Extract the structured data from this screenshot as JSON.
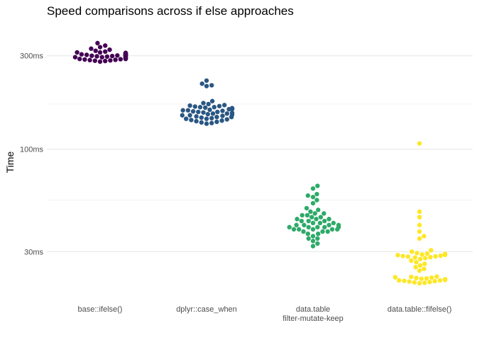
{
  "chart_data": {
    "type": "scatter",
    "subtype": "beeswarm",
    "title": "Speed comparisons across if else approaches",
    "xlabel": "",
    "ylabel": "Time",
    "y_scale": "log10",
    "y_unit": "ms",
    "ylim": [
      17.5,
      450
    ],
    "y_ticks": [
      {
        "value": 30,
        "label": "30ms"
      },
      {
        "value": 100,
        "label": "100ms"
      },
      {
        "value": 300,
        "label": "300ms"
      }
    ],
    "y_minor_ticks": [
      55,
      170
    ],
    "grid": true,
    "legend": "none",
    "categories": [
      {
        "lines": [
          "base::ifelse()"
        ]
      },
      {
        "lines": [
          "dplyr::case_when"
        ]
      },
      {
        "lines": [
          "data.table",
          "filter-mutate-keep"
        ]
      },
      {
        "lines": [
          "data.table::fifelse()"
        ]
      }
    ],
    "series": [
      {
        "color": "#440154",
        "values": [
          348,
          338,
          332,
          326,
          322,
          318,
          315,
          312,
          310,
          309,
          308,
          307,
          306,
          305,
          305,
          304,
          303,
          302,
          302,
          301,
          300,
          300,
          299,
          298,
          298,
          297,
          296,
          295,
          295,
          294,
          293,
          292,
          291,
          290,
          290,
          289,
          289,
          288,
          287,
          286,
          285,
          284,
          283,
          282,
          280,
          310,
          312,
          306,
          304,
          300
        ]
      },
      {
        "color": "#2a5783",
        "values": [
          224,
          216,
          212,
          210,
          176,
          172,
          170,
          168,
          167,
          166,
          165,
          164,
          163,
          162,
          161,
          160,
          159,
          158,
          157,
          156,
          155,
          154,
          153,
          152,
          151,
          150,
          149,
          148,
          147,
          146,
          145,
          144,
          143,
          142,
          141,
          140,
          139,
          138,
          137,
          136,
          135,
          160,
          158,
          155,
          152,
          162,
          149,
          146,
          143,
          164
        ]
      },
      {
        "color": "#2eaa68",
        "values": [
          65,
          63,
          59,
          58,
          57,
          55,
          53,
          50,
          49,
          48,
          47,
          46,
          45,
          44,
          44,
          43,
          43,
          42,
          42,
          41,
          41,
          40,
          40,
          40,
          39,
          39,
          39,
          38,
          38,
          37,
          37,
          36,
          35,
          35,
          34,
          33,
          32,
          40,
          41,
          42,
          43,
          39,
          38,
          44,
          45,
          46,
          47,
          40,
          41,
          39
        ]
      },
      {
        "color": "#fde725",
        "values": [
          107,
          48,
          45,
          41,
          38,
          36,
          35,
          30.5,
          30,
          29.5,
          29.2,
          29,
          28.8,
          28.6,
          28.5,
          28.3,
          28.1,
          28,
          27.8,
          27.5,
          27,
          26.5,
          26,
          25.5,
          25,
          24.5,
          24,
          22.4,
          22.2,
          22,
          21.9,
          21.8,
          21.7,
          21.6,
          21.5,
          21.4,
          21.3,
          21.2,
          21.1,
          21,
          20.9,
          20.8,
          20.7,
          22.3,
          22.1,
          21.6,
          21.4,
          28.4,
          28.9,
          29.3
        ]
      }
    ]
  }
}
